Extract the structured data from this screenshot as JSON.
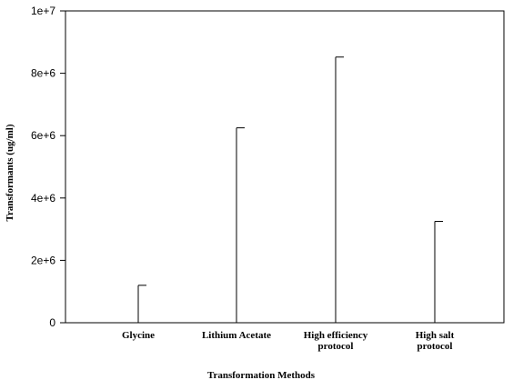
{
  "chart_data": {
    "type": "bar",
    "style": "error-bar-only",
    "title": "",
    "xlabel": "Transformation Methods",
    "ylabel": "Transformants (ug/ml)",
    "categories": [
      [
        "Glycine"
      ],
      [
        "Lithium Acetate"
      ],
      [
        "High efficiency",
        "protocol"
      ],
      [
        "High salt",
        "protocol"
      ]
    ],
    "values": [
      1200000,
      6250000,
      8520000,
      3250000
    ],
    "ylim": [
      0,
      10000000
    ],
    "yticks": [
      0,
      2000000,
      4000000,
      6000000,
      8000000,
      10000000
    ],
    "ytick_labels": [
      "0",
      "2e+6",
      "4e+6",
      "6e+6",
      "8e+6",
      "1e+7"
    ],
    "grid": false,
    "legend": "none",
    "colors": {
      "line": "#000000",
      "background": "#ffffff"
    }
  }
}
